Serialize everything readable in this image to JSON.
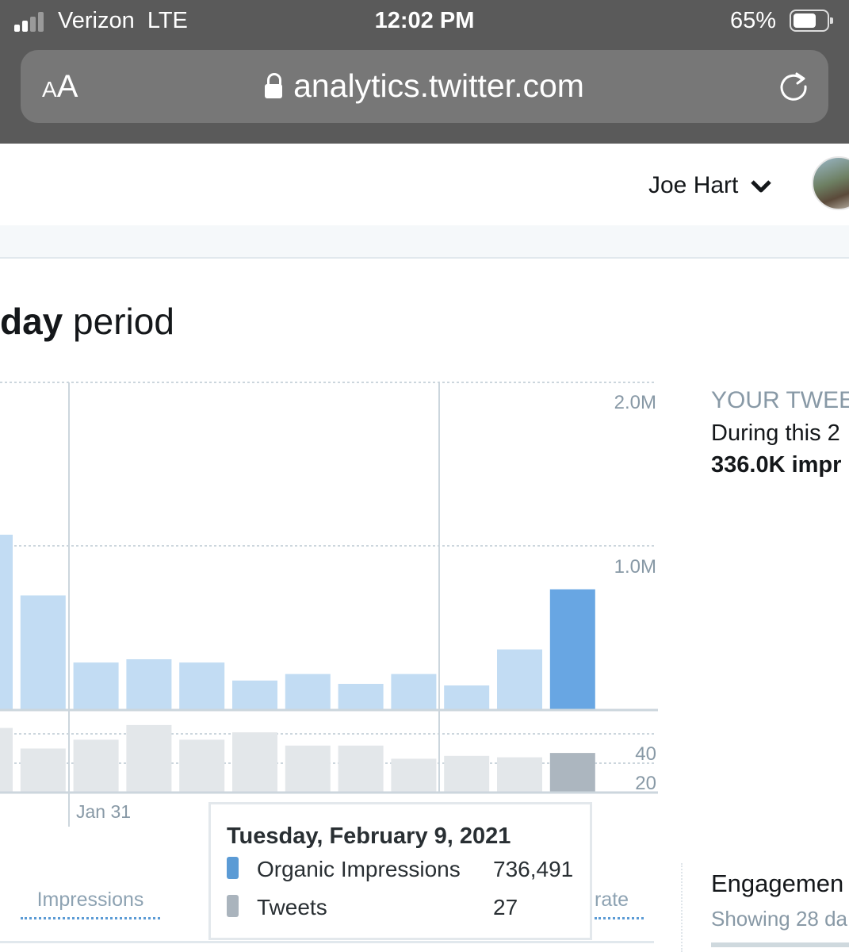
{
  "status_bar": {
    "carrier": "Verizon",
    "network": "LTE",
    "time": "12:02 PM",
    "battery": "65%"
  },
  "browser": {
    "text_size_label": "AA",
    "url": "analytics.twitter.com"
  },
  "header": {
    "user_name": "Joe Hart"
  },
  "page": {
    "title_bold": "day",
    "title_rest": " period"
  },
  "chart_data": [
    {
      "type": "bar",
      "name_in_ui": "impressions",
      "y_axis_ticks": [
        "2.0M",
        "1.0M"
      ],
      "ylim": [
        0,
        2000000
      ],
      "values": [
        1070000,
        700000,
        290000,
        310000,
        290000,
        180000,
        220000,
        160000,
        220000,
        150000,
        370000,
        736491
      ],
      "highlight_index": 11,
      "colors": {
        "normal": "#c2dcf3",
        "highlight": "#68a6e3"
      }
    },
    {
      "type": "bar",
      "name_in_ui": "tweets",
      "y_axis_ticks": [
        "40",
        "20"
      ],
      "ylim": [
        0,
        60
      ],
      "values": [
        44,
        30,
        36,
        46,
        36,
        41,
        32,
        32,
        23,
        25,
        24,
        27
      ],
      "highlight_index": 11,
      "colors": {
        "normal": "#e3e7ea",
        "highlight": "#acb6bf"
      }
    }
  ],
  "x_axis": {
    "label": "Jan 31"
  },
  "tooltip": {
    "date": "Tuesday, February 9, 2021",
    "rows": [
      {
        "label": "Organic Impressions",
        "value": "736,491",
        "color": "#5b9bd5"
      },
      {
        "label": "Tweets",
        "value": "27",
        "color": "#aab4bd"
      }
    ]
  },
  "tabs": {
    "impressions": "Impressions",
    "rate": "rate"
  },
  "right_panel": {
    "title": "YOUR TWEE",
    "during": "During this 2",
    "impressions": "336.0K impr",
    "engagement": "Engagemen",
    "showing": "Showing 28 da"
  }
}
